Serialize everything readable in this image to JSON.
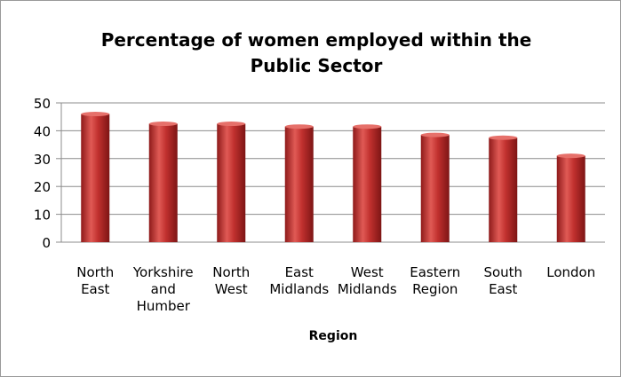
{
  "chart_data": {
    "type": "bar",
    "title_lines": [
      "Percentage of women employed within the",
      "Public Sector"
    ],
    "xlabel": "Region",
    "ylabel": "",
    "ylim": [
      0,
      50
    ],
    "yticks": [
      0,
      10,
      20,
      30,
      40,
      50
    ],
    "grid": true,
    "legend": "none",
    "bar_color": "#c0302e",
    "categories": [
      [
        "North",
        "East"
      ],
      [
        "Yorkshire",
        "and",
        "Humber"
      ],
      [
        "North",
        "West"
      ],
      [
        "East",
        "Midlands"
      ],
      [
        "West",
        "Midlands"
      ],
      [
        "Eastern",
        "Region"
      ],
      [
        "South",
        "East"
      ],
      [
        "London"
      ]
    ],
    "values": [
      46,
      42.5,
      42.5,
      41.5,
      41.5,
      38.5,
      37.5,
      31
    ]
  }
}
